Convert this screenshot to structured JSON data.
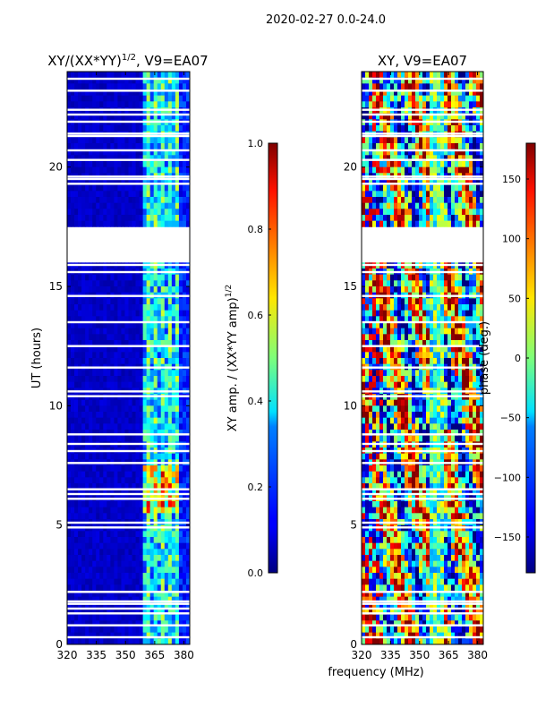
{
  "suptitle": "2020-02-27 0.0-24.0",
  "xlabel": "frequency (MHz)",
  "chart_data": [
    {
      "type": "heatmap",
      "title": "XY/(XX*YY)",
      "title_superscript": "1/2",
      "title_suffix": ", V9=EA07",
      "ylabel": "UT (hours)",
      "xticks": [
        "320",
        "335",
        "350",
        "365",
        "380"
      ],
      "xtick_values": [
        320,
        335,
        350,
        365,
        380
      ],
      "xlim": [
        320,
        383
      ],
      "yticks": [
        "0",
        "5",
        "10",
        "15",
        "20"
      ],
      "ytick_values": [
        0,
        5,
        10,
        15,
        20
      ],
      "ylim": [
        0,
        24
      ],
      "data_gap_hours": [
        [
          16.0,
          17.6
        ]
      ],
      "colorbar": {
        "label": "XY amp. / (XX*YY amp)",
        "label_superscript": "1/2",
        "ticks": [
          "0.0",
          "0.2",
          "0.4",
          "0.6",
          "0.8",
          "1.0"
        ],
        "tick_values": [
          0.0,
          0.2,
          0.4,
          0.6,
          0.8,
          1.0
        ],
        "range": [
          0.0,
          1.0
        ]
      }
    },
    {
      "type": "heatmap",
      "title": "XY, V9=EA07",
      "ylabel": "",
      "xticks": [
        "320",
        "335",
        "350",
        "365",
        "380"
      ],
      "xtick_values": [
        320,
        335,
        350,
        365,
        380
      ],
      "xlim": [
        320,
        383
      ],
      "yticks": [
        "0",
        "5",
        "10",
        "15",
        "20"
      ],
      "ytick_values": [
        0,
        5,
        10,
        15,
        20
      ],
      "ylim": [
        0,
        24
      ],
      "data_gap_hours": [
        [
          16.0,
          17.6
        ]
      ],
      "colorbar": {
        "label": "phase (deg.)",
        "ticks": [
          "−150",
          "−100",
          "−50",
          "0",
          "50",
          "100",
          "150"
        ],
        "tick_values": [
          -150,
          -100,
          -50,
          0,
          50,
          100,
          150
        ],
        "range": [
          -180,
          180
        ]
      }
    }
  ]
}
